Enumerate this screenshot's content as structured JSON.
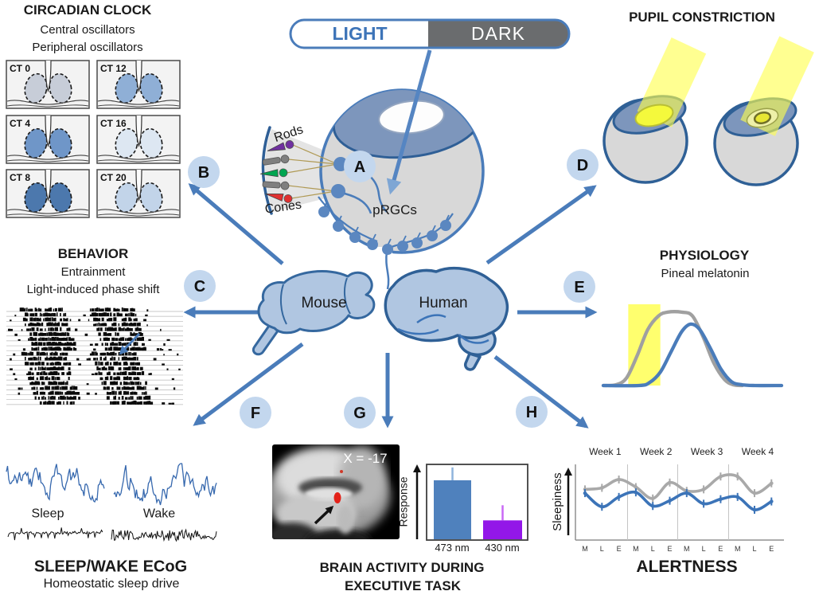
{
  "figure": {
    "type": "scientific-diagram",
    "topic": "Light, pRGCs and non-visual responses in mouse and human"
  },
  "colors": {
    "arrow_blue": "#4a7cba",
    "hub_fill": "#c3d7ee",
    "light_label_blue": "#3d74b8",
    "dark_fill": "#6a6c6e",
    "brain_fill": "#b0c6e1",
    "brain_stroke": "#2f6096",
    "eye_body": "#d8d8d8",
    "iris": "#7d96bc",
    "beam_yellow": "#ffff4d",
    "prgc_dot": "#5b87c0",
    "bar_blue": "#4f81bd",
    "bar_purple": "#9317e8",
    "series_gray": "#a9a9a9",
    "series_blue": "#3c74b8",
    "melatonin_gray": "#a0a0a0",
    "melatonin_blue": "#4a7cba"
  },
  "light_dark_bar": {
    "light": "LIGHT",
    "dark": "DARK"
  },
  "hubs": [
    {
      "label": "A"
    },
    {
      "label": "B"
    },
    {
      "label": "C"
    },
    {
      "label": "D"
    },
    {
      "label": "E"
    },
    {
      "label": "F"
    },
    {
      "label": "G"
    },
    {
      "label": "H"
    }
  ],
  "eye_diagram": {
    "rods": "Rods",
    "cones": "Cones",
    "prgcs": "pRGCs",
    "receptors": [
      {
        "kind": "cone",
        "color": "#7030a0"
      },
      {
        "kind": "rod",
        "color": "#7f7f7f"
      },
      {
        "kind": "cone",
        "color": "#00a550"
      },
      {
        "kind": "rod",
        "color": "#7f7f7f"
      },
      {
        "kind": "cone",
        "color": "#e03030"
      }
    ]
  },
  "brains": {
    "mouse": "Mouse",
    "human": "Human"
  },
  "sections": {
    "circadian": {
      "title": "CIRCADIAN CLOCK",
      "subtitle1": "Central oscillators",
      "subtitle2": "Peripheral oscillators",
      "panels": [
        {
          "label": "CT 0",
          "fill": "#c7cdd8"
        },
        {
          "label": "CT 12",
          "fill": "#8fafd6"
        },
        {
          "label": "CT 4",
          "fill": "#6f96c8"
        },
        {
          "label": "CT 16",
          "fill": "#dde7f2"
        },
        {
          "label": "CT 8",
          "fill": "#4c78ad"
        },
        {
          "label": "CT 20",
          "fill": "#c2d4e9"
        }
      ]
    },
    "behavior": {
      "title": "BEHAVIOR",
      "subtitle1": "Entrainment",
      "subtitle2": "Light-induced phase shift"
    },
    "pupil": {
      "title": "PUPIL CONSTRICTION"
    },
    "physiology": {
      "title": "PHYSIOLOGY",
      "subtitle1": "Pineal melatonin"
    },
    "sleep": {
      "trace1": "Sleep",
      "trace2": "Wake",
      "title": "SLEEP/WAKE ECoG",
      "subtitle1": "Homeostatic sleep drive"
    },
    "brain_activity": {
      "mri_label": "X = -17",
      "title1": "BRAIN ACTIVITY DURING",
      "title2": "EXECUTIVE TASK"
    },
    "alertness": {
      "title": "ALERTNESS"
    }
  },
  "chart_data": [
    {
      "id": "melatonin_profile",
      "type": "line",
      "title": "Pineal melatonin (schematic)",
      "x_range": [
        0,
        1
      ],
      "y_range": [
        0,
        1
      ],
      "light_pulse": {
        "x0": 0.14,
        "x1": 0.32,
        "color": "#ffff5e"
      },
      "series": [
        {
          "name": "melatonin-baseline-gray",
          "color": "#a0a0a0",
          "points": [
            [
              0,
              0
            ],
            [
              0.07,
              0.01
            ],
            [
              0.13,
              0.1
            ],
            [
              0.19,
              0.4
            ],
            [
              0.25,
              0.75
            ],
            [
              0.31,
              0.93
            ],
            [
              0.36,
              0.98
            ],
            [
              0.44,
              0.98
            ],
            [
              0.5,
              0.93
            ],
            [
              0.56,
              0.65
            ],
            [
              0.62,
              0.3
            ],
            [
              0.68,
              0.08
            ],
            [
              0.73,
              0.01
            ],
            [
              0.78,
              0
            ]
          ]
        },
        {
          "name": "melatonin-light-shifted-blue",
          "color": "#4a7cba",
          "points": [
            [
              0,
              0
            ],
            [
              0.2,
              0
            ],
            [
              0.26,
              0.04
            ],
            [
              0.32,
              0.18
            ],
            [
              0.38,
              0.45
            ],
            [
              0.44,
              0.72
            ],
            [
              0.49,
              0.82
            ],
            [
              0.54,
              0.75
            ],
            [
              0.6,
              0.5
            ],
            [
              0.66,
              0.22
            ],
            [
              0.72,
              0.05
            ],
            [
              0.78,
              0.01
            ],
            [
              0.85,
              0
            ],
            [
              1,
              0
            ]
          ]
        }
      ]
    },
    {
      "id": "executive_task_response",
      "type": "bar",
      "ylabel": "Response",
      "categories": [
        "473 nm",
        "430 nm"
      ],
      "values": [
        0.79,
        0.26
      ],
      "errors": [
        0.17,
        0.2
      ],
      "bar_colors": [
        "#4f81bd",
        "#9317e8"
      ],
      "error_colors": [
        "#8fb4dc",
        "#c969f5"
      ],
      "ylim": [
        0,
        1
      ]
    },
    {
      "id": "alertness_sleepiness",
      "type": "line",
      "ylabel": "Sleepiness",
      "week_labels": [
        "Week 1",
        "Week 2",
        "Week 3",
        "Week 4"
      ],
      "x_labels": [
        "M",
        "L",
        "E",
        "M",
        "L",
        "E",
        "M",
        "L",
        "E",
        "M",
        "L",
        "E"
      ],
      "ylim": [
        0,
        100
      ],
      "error": 4,
      "grid": "week-separators",
      "series": [
        {
          "name": "control-gray",
          "color": "#a9a9a9",
          "values": [
            67,
            69,
            80,
            70,
            55,
            76,
            65,
            67,
            84,
            84,
            62,
            75
          ]
        },
        {
          "name": "blue-light-blue",
          "color": "#3c74b8",
          "values": [
            62,
            44,
            57,
            63,
            45,
            52,
            62,
            48,
            54,
            57,
            40,
            51
          ]
        }
      ]
    }
  ]
}
